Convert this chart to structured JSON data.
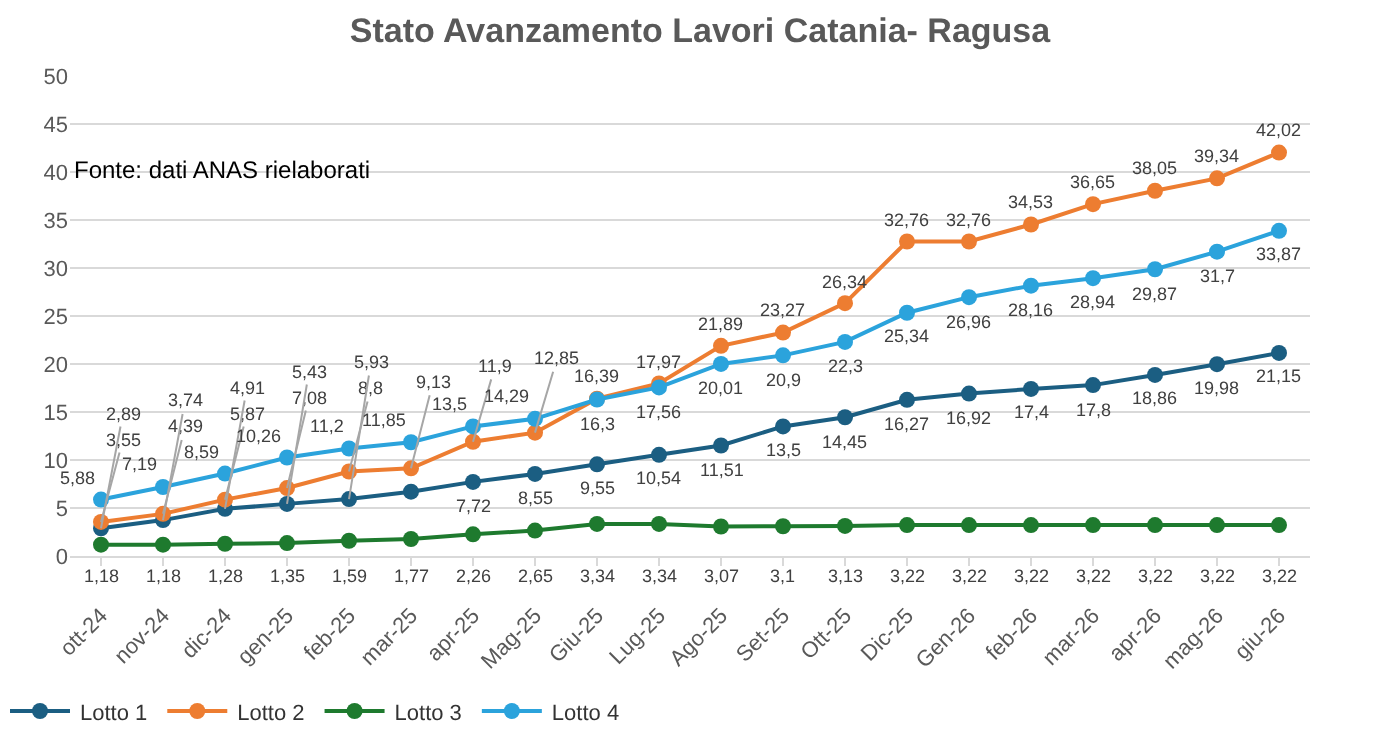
{
  "chart_data": {
    "type": "line",
    "title": "Stato Avanzamento Lavori Catania- Ragusa",
    "annotations": [
      "Fonte: dati ANAS rielaborati"
    ],
    "categories": [
      "ott-24",
      "nov-24",
      "dic-24",
      "gen-25",
      "feb-25",
      "mar-25",
      "apr-25",
      "Mag-25",
      "Giu-25",
      "Lug-25",
      "Ago-25",
      "Set-25",
      "Ott-25",
      "Dic-25",
      "Gen-26",
      "feb-26",
      "mar-26",
      "apr-26",
      "mag-26",
      "giu-26"
    ],
    "series": [
      {
        "name": "Lotto 1",
        "color": "#1b5e82",
        "values": [
          2.89,
          3.74,
          4.91,
          5.43,
          5.93,
          6.7,
          7.72,
          8.55,
          9.55,
          10.54,
          11.51,
          13.5,
          14.45,
          16.27,
          16.92,
          17.4,
          17.8,
          18.86,
          19.98,
          21.15
        ],
        "value_labels": [
          "2,89",
          "3,74",
          "4,91",
          "5,43",
          "5,93",
          null,
          "7,72",
          "8,55",
          "9,55",
          "10,54",
          "11,51",
          "13,5",
          "14,45",
          "16,27",
          "16,92",
          "17,4",
          "17,8",
          "18,86",
          "19,98",
          "21,15"
        ]
      },
      {
        "name": "Lotto 2",
        "color": "#ed7d31",
        "values": [
          3.55,
          4.39,
          5.87,
          7.08,
          8.8,
          9.13,
          11.9,
          12.85,
          16.39,
          17.97,
          21.89,
          23.27,
          26.34,
          32.76,
          32.76,
          34.53,
          36.65,
          38.05,
          39.34,
          42.02
        ],
        "value_labels": [
          "3,55",
          "4,39",
          "5,87",
          "7,08",
          "8,8",
          "9,13",
          "11,9",
          "12,85",
          "16,39",
          "17,97",
          "21,89",
          "23,27",
          "26,34",
          "32,76",
          "32,76",
          "34,53",
          "36,65",
          "38,05",
          "39,34",
          "42,02"
        ]
      },
      {
        "name": "Lotto 3",
        "color": "#1e7a2e",
        "values": [
          1.18,
          1.18,
          1.28,
          1.35,
          1.59,
          1.77,
          2.26,
          2.65,
          3.34,
          3.34,
          3.07,
          3.1,
          3.13,
          3.22,
          3.22,
          3.22,
          3.22,
          3.22,
          3.22,
          3.22
        ],
        "value_labels": [
          "1,18",
          "1,18",
          "1,28",
          "1,35",
          "1,59",
          "1,77",
          "2,26",
          "2,65",
          "3,34",
          "3,34",
          "3,07",
          "3,1",
          "3,13",
          "3,22",
          "3,22",
          "3,22",
          "3,22",
          "3,22",
          "3,22",
          "3,22"
        ]
      },
      {
        "name": "Lotto 4",
        "color": "#2ba3dc",
        "values": [
          5.88,
          7.19,
          8.59,
          10.26,
          11.2,
          11.85,
          13.5,
          14.29,
          16.3,
          17.56,
          20.01,
          20.9,
          22.3,
          25.34,
          26.96,
          28.16,
          28.94,
          29.87,
          31.7,
          33.87
        ],
        "value_labels": [
          "5,88",
          "7,19",
          "8,59",
          "10,26",
          "11,2",
          "11,85",
          "13,5",
          "14,29",
          "16,3",
          "17,56",
          "20,01",
          "20,9",
          "22,3",
          "25,34",
          "26,96",
          "28,16",
          "28,94",
          "29,87",
          "31,7",
          "33,87"
        ]
      }
    ],
    "ylim": [
      0,
      50
    ],
    "yticks": [
      0,
      5,
      10,
      15,
      20,
      25,
      30,
      35,
      40,
      45,
      50
    ],
    "grid": "y",
    "legend": "bottom",
    "marker": "circle",
    "line_style": "solid"
  }
}
